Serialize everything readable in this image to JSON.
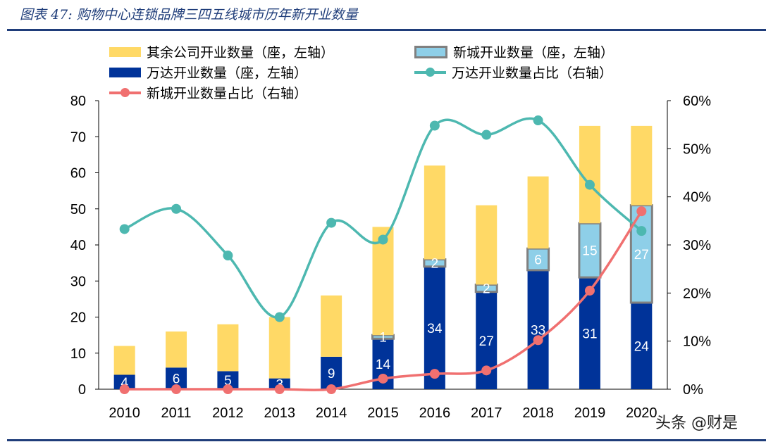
{
  "title": "图表 47: 购物中心连锁品牌三四五线城市历年新开业数量",
  "watermark": "头条 @财是",
  "colors": {
    "others": "#ffd966",
    "wanda": "#003399",
    "xincheng": "#8ecfe8",
    "xincheng_border": "#808080",
    "wanda_share": "#4db8b0",
    "xincheng_share": "#f07070",
    "rule": "#1f3d7a"
  },
  "chart_data": {
    "type": "bar+line",
    "categories": [
      "2010",
      "2011",
      "2012",
      "2013",
      "2014",
      "2015",
      "2016",
      "2017",
      "2018",
      "2019",
      "2020"
    ],
    "series": [
      {
        "name": "万达开业数量（座，左轴）",
        "type": "stacked-bar",
        "axis": "left",
        "values": [
          4,
          6,
          5,
          3,
          9,
          14,
          34,
          27,
          33,
          31,
          24
        ]
      },
      {
        "name": "新城开业数量（座，左轴）",
        "type": "stacked-bar",
        "axis": "left",
        "values": [
          0,
          0,
          0,
          0,
          0,
          1,
          2,
          2,
          6,
          15,
          27
        ]
      },
      {
        "name": "其余公司开业数量（座，左轴）",
        "type": "stacked-bar",
        "axis": "left",
        "values": [
          8,
          10,
          13,
          17,
          17,
          30,
          26,
          22,
          20,
          27,
          22
        ]
      },
      {
        "name": "万达开业数量占比（右轴）",
        "type": "line",
        "axis": "right",
        "values": [
          33.3,
          37.5,
          27.8,
          15.0,
          34.6,
          31.1,
          54.8,
          52.9,
          55.9,
          42.5,
          32.9
        ]
      },
      {
        "name": "新城开业数量占比（右轴）",
        "type": "line",
        "axis": "right",
        "values": [
          0,
          0,
          0,
          0,
          0,
          2.2,
          3.2,
          3.9,
          10.2,
          20.5,
          37.0
        ]
      }
    ],
    "left_axis": {
      "ylim": [
        0,
        80
      ],
      "ticks": [
        "0",
        "10",
        "20",
        "30",
        "40",
        "50",
        "60",
        "70",
        "80"
      ]
    },
    "right_axis": {
      "ylim": [
        0,
        60
      ],
      "ticks": [
        "0%",
        "10%",
        "20%",
        "30%",
        "40%",
        "50%",
        "60%"
      ]
    },
    "legend_position": "top",
    "grid": false
  }
}
